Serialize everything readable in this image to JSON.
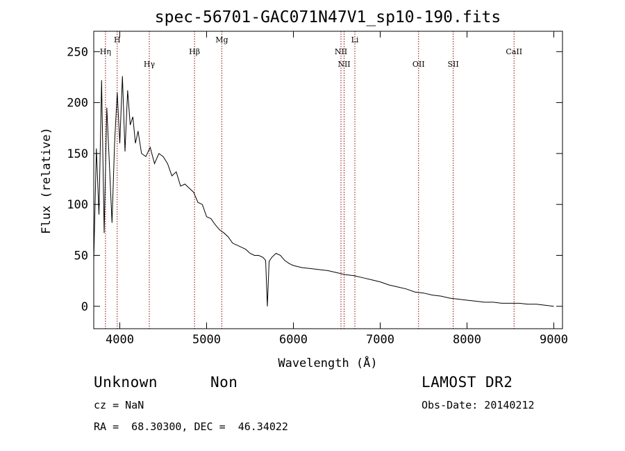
{
  "chart_data": {
    "type": "line",
    "title": "spec-56701-GAC071N47V1_sp10-190.fits",
    "xlabel": "Wavelength (Å)",
    "ylabel": "Flux (relative)",
    "xlim": [
      3700,
      9100
    ],
    "ylim": [
      -22,
      270
    ],
    "xticks": [
      4000,
      5000,
      6000,
      7000,
      8000,
      9000
    ],
    "yticks": [
      0,
      50,
      100,
      150,
      200,
      250
    ],
    "grid": false,
    "line_color": "#000000",
    "marker_color": "#8b0000",
    "series": [
      {
        "x": [
          3700,
          3730,
          3760,
          3790,
          3820,
          3850,
          3880,
          3910,
          3940,
          3970,
          4000,
          4030,
          4060,
          4090,
          4120,
          4150,
          4180,
          4210,
          4250,
          4300,
          4350,
          4400,
          4450,
          4500,
          4550,
          4600,
          4650,
          4700,
          4750,
          4800,
          4850,
          4900,
          4950,
          5000,
          5050,
          5100,
          5150,
          5200,
          5250,
          5300,
          5350,
          5400,
          5450,
          5500,
          5550,
          5600,
          5650,
          5680,
          5700,
          5720,
          5750,
          5800,
          5850,
          5900,
          5950,
          6000,
          6100,
          6200,
          6300,
          6400,
          6500,
          6600,
          6700,
          6800,
          6900,
          7000,
          7100,
          7200,
          7300,
          7400,
          7500,
          7600,
          7700,
          7800,
          7900,
          8000,
          8100,
          8200,
          8300,
          8400,
          8500,
          8600,
          8700,
          8800,
          8900,
          9000
        ],
        "y": [
          45,
          155,
          90,
          222,
          72,
          195,
          140,
          82,
          160,
          210,
          160,
          226,
          152,
          212,
          178,
          186,
          160,
          172,
          150,
          147,
          156,
          140,
          150,
          147,
          140,
          128,
          132,
          118,
          120,
          116,
          112,
          102,
          100,
          88,
          86,
          80,
          75,
          72,
          68,
          62,
          60,
          58,
          56,
          52,
          50,
          50,
          48,
          45,
          0,
          44,
          48,
          52,
          50,
          45,
          42,
          40,
          38,
          37,
          36,
          35,
          33,
          31,
          30,
          28,
          26,
          24,
          21,
          19,
          17,
          14,
          13,
          11,
          10,
          8,
          7,
          6,
          5,
          4,
          4,
          3,
          3,
          3,
          2,
          2,
          1,
          0
        ]
      }
    ],
    "lines": [
      {
        "label": "Hη",
        "x": 3835,
        "row": 2
      },
      {
        "label": "H",
        "x": 3970,
        "row": 1
      },
      {
        "label": "Hγ",
        "x": 4340,
        "row": 3
      },
      {
        "label": "Hβ",
        "x": 4861,
        "row": 2
      },
      {
        "label": "Mg",
        "x": 5175,
        "row": 1
      },
      {
        "label": "NII",
        "x": 6548,
        "row": 2
      },
      {
        "label": "NII",
        "x": 6584,
        "row": 3
      },
      {
        "label": "Li",
        "x": 6708,
        "row": 1
      },
      {
        "label": "OII",
        "x": 7442,
        "row": 3
      },
      {
        "label": "SII",
        "x": 7841,
        "row": 3
      },
      {
        "label": "CaII",
        "x": 8542,
        "row": 2
      }
    ]
  },
  "info": {
    "object_class": "Unknown",
    "object_subclass": "Non",
    "survey": "LAMOST DR2",
    "redshift": "cz = NaN",
    "obs_date": "Obs-Date: 20140212",
    "coords": "RA =  68.30300, DEC =  46.34022"
  }
}
